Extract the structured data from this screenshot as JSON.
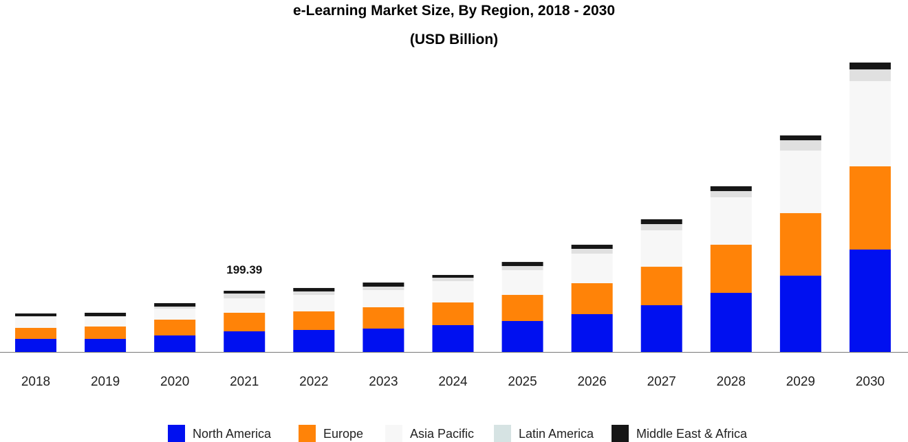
{
  "chart_data": {
    "type": "bar",
    "stacked": true,
    "title": "e-Learning Market Size, By Region, 2018 - 2030",
    "subtitle": "(USD Billion)",
    "xlabel": "",
    "ylabel": "",
    "ylim": [
      0,
      943
    ],
    "grid": false,
    "legend_position": "bottom",
    "categories": [
      "2018",
      "2019",
      "2020",
      "2021",
      "2022",
      "2023",
      "2024",
      "2025",
      "2026",
      "2027",
      "2028",
      "2029",
      "2030"
    ],
    "series": [
      {
        "name": "North America",
        "color": "#0010f0",
        "values": [
          42.6,
          42.6,
          53.8,
          67.2,
          71.7,
          76.2,
          87.4,
          100.8,
          123.2,
          152.3,
          192.6,
          248.6,
          333.8
        ]
      },
      {
        "name": "Europe",
        "color": "#ff8308",
        "values": [
          35.8,
          40.3,
          51.5,
          60.5,
          60.5,
          69.4,
          73.9,
          85.1,
          100.8,
          125.4,
          156.8,
          203.8,
          271.0
        ]
      },
      {
        "name": "Asia Pacific",
        "color": "#f7f7f7",
        "values": [
          35.8,
          31.4,
          35.8,
          47.0,
          53.8,
          56.0,
          69.4,
          80.6,
          96.3,
          118.7,
          154.6,
          203.8,
          277.8
        ]
      },
      {
        "name": "Latin America",
        "color": "#e0e0e0",
        "legend_color": "#d6e3e3",
        "values": [
          2.2,
          2.2,
          6.7,
          15.7,
          11.2,
          11.2,
          11.2,
          13.4,
          15.7,
          20.2,
          20.2,
          33.6,
          38.1
        ]
      },
      {
        "name": "Middle East & Africa",
        "color": "#161616",
        "values": [
          9.0,
          11.2,
          11.2,
          9.0,
          11.2,
          13.4,
          9.0,
          13.4,
          13.4,
          15.7,
          15.7,
          15.7,
          22.4
        ]
      }
    ],
    "annotations": [
      {
        "category": "2021",
        "text": "199.39"
      }
    ]
  }
}
